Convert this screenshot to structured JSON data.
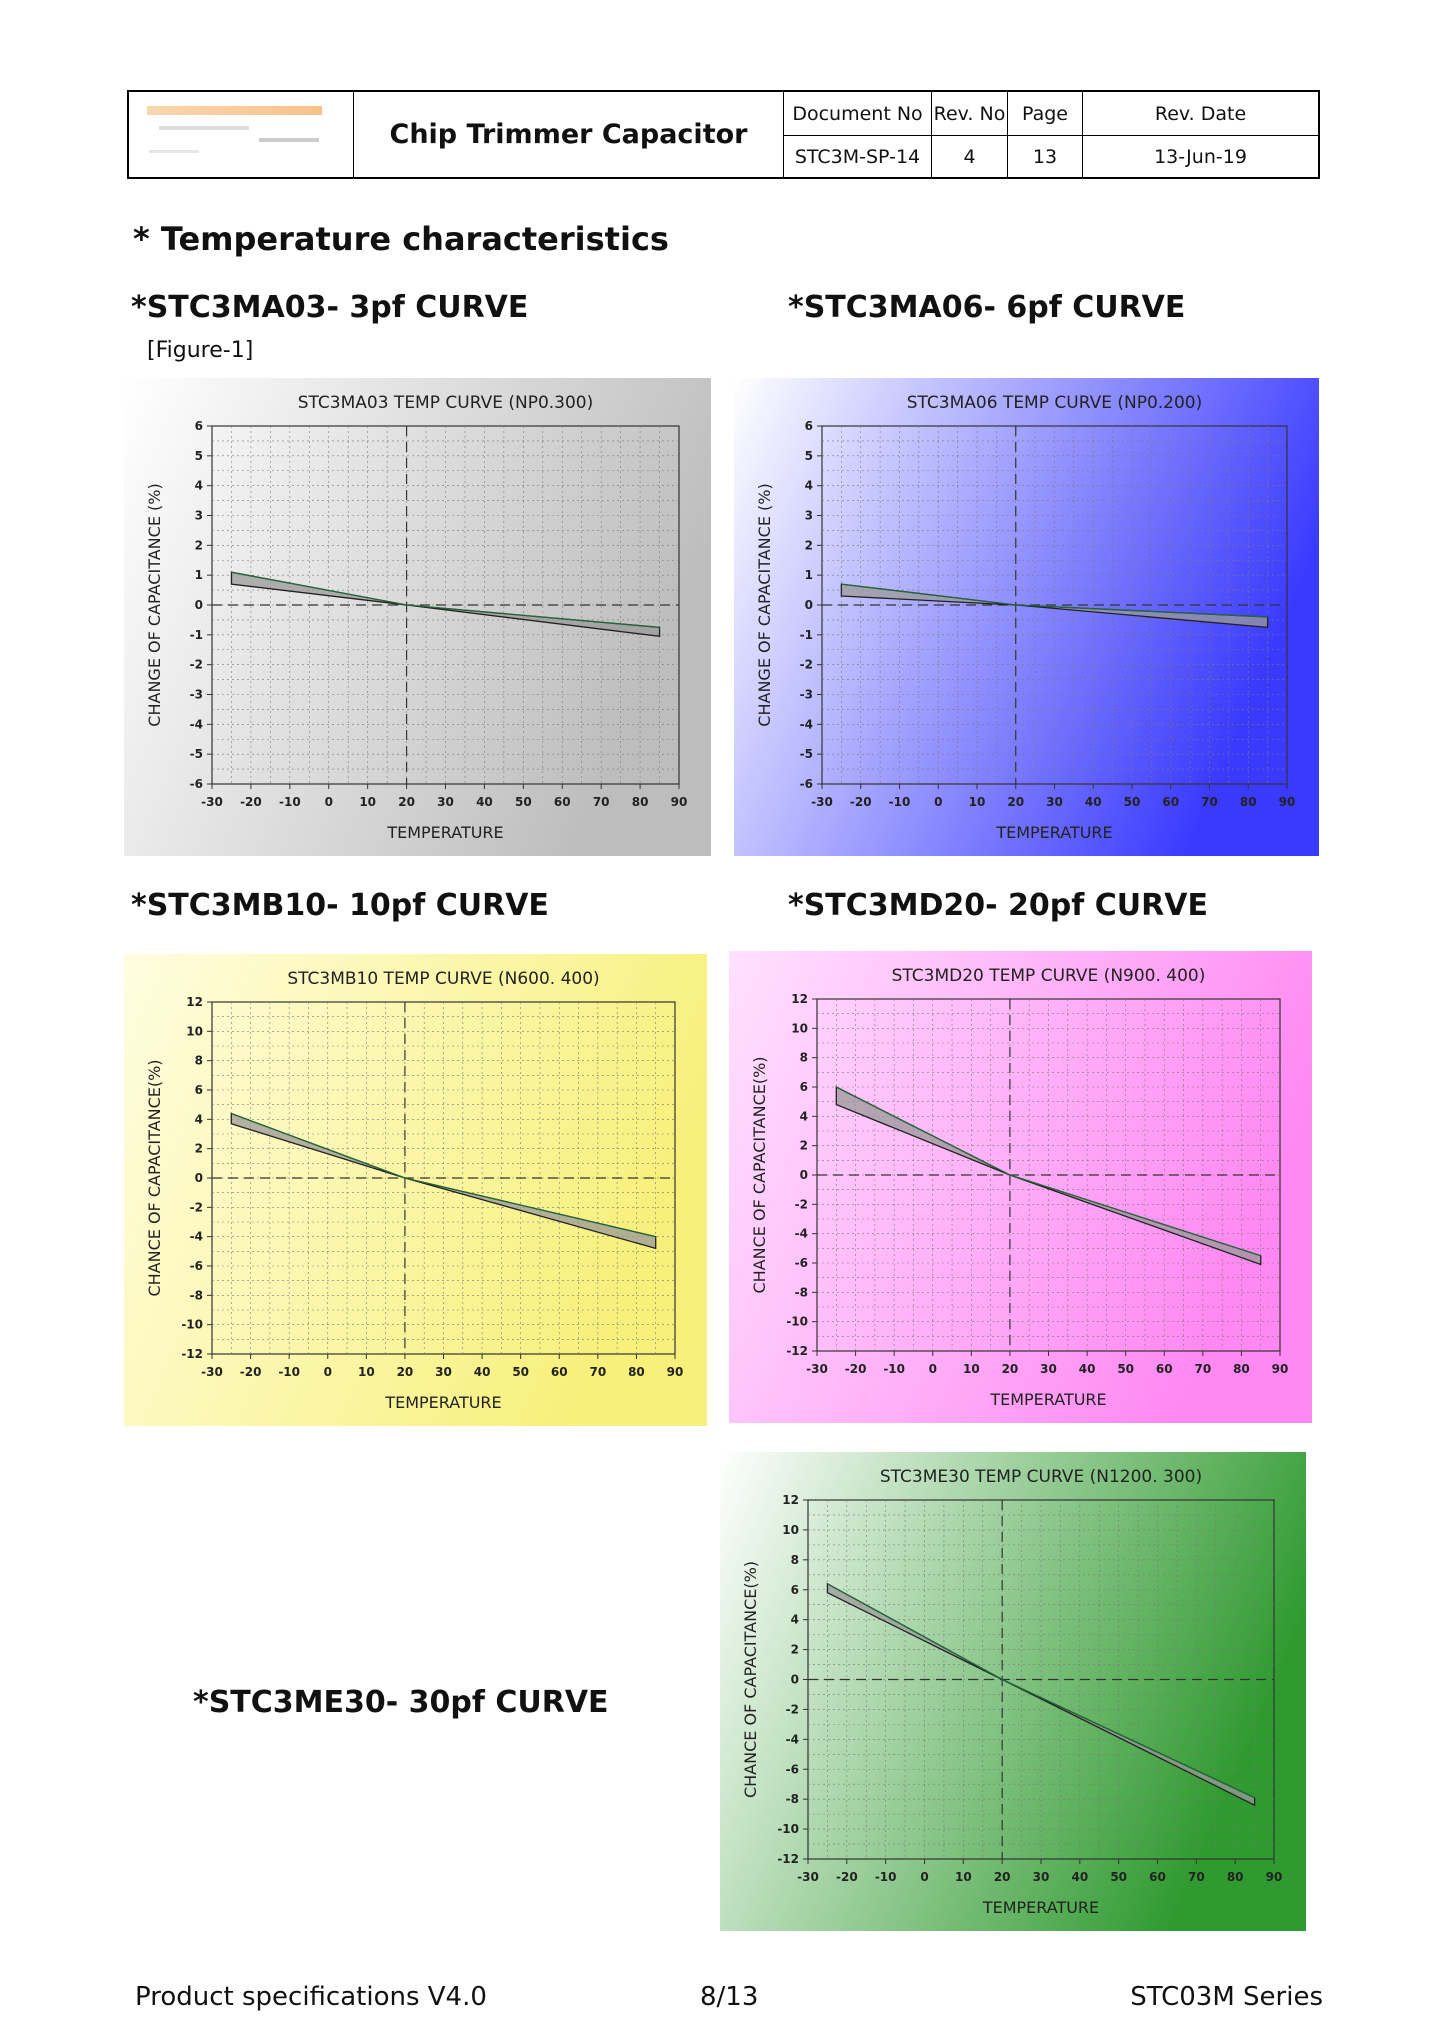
{
  "header": {
    "title": "Chip Trimmer Capacitor",
    "doc_no_label": "Document No",
    "rev_no_label": "Rev. No",
    "page_label": "Page",
    "rev_date_label": "Rev. Date",
    "doc_no": "STC3M-SP-14",
    "rev_no": "4",
    "page": "13",
    "rev_date": "13-Jun-19"
  },
  "section_title": "* Temperature characteristics",
  "figure_label": "[Figure-1]",
  "curve_titles": {
    "ma03": "*STC3MA03- 3pf  CURVE",
    "ma06": "*STC3MA06- 6pf  CURVE",
    "mb10": "*STC3MB10- 10pf  CURVE",
    "md20": "*STC3MD20- 20pf  CURVE",
    "me30": "*STC3ME30- 30pf  CURVE"
  },
  "footer": {
    "left": "Product specifications V4.0",
    "center": "8/13",
    "right": "STC03M Series"
  },
  "chart_data": [
    {
      "id": "ma03",
      "type": "area",
      "title": "STC3MA03  TEMP CURVE (NP0.300)",
      "xlabel": "TEMPERATURE",
      "ylabel": "CHANGE OF CAPACITANCE (%)",
      "xlim": [
        -30,
        90
      ],
      "ylim": [
        -6,
        6
      ],
      "xticks": [
        -30,
        -20,
        -10,
        0,
        10,
        20,
        30,
        40,
        50,
        60,
        70,
        80,
        90
      ],
      "yticks": [
        -6,
        -5,
        -4,
        -3,
        -2,
        -1,
        0,
        1,
        2,
        3,
        4,
        5,
        6
      ],
      "grid": true,
      "reference_lines": {
        "x": 20,
        "y": 0
      },
      "x": [
        -25,
        20,
        85
      ],
      "upper": [
        1.1,
        0.0,
        -0.75
      ],
      "lower": [
        0.7,
        0.0,
        -1.05
      ],
      "background": [
        "#ffffff",
        "#bdbdbd"
      ]
    },
    {
      "id": "ma06",
      "type": "area",
      "title": "STC3MA06 TEMP CURVE  (NP0.200)",
      "xlabel": "TEMPERATURE",
      "ylabel": "CHANGE OF CAPACITANCE (%)",
      "xlim": [
        -30,
        90
      ],
      "ylim": [
        -6,
        6
      ],
      "xticks": [
        -30,
        -20,
        -10,
        0,
        10,
        20,
        30,
        40,
        50,
        60,
        70,
        80,
        90
      ],
      "yticks": [
        -6,
        -5,
        -4,
        -3,
        -2,
        -1,
        0,
        1,
        2,
        3,
        4,
        5,
        6
      ],
      "grid": true,
      "reference_lines": {
        "x": 20,
        "y": 0
      },
      "x": [
        -25,
        20,
        85
      ],
      "upper": [
        0.7,
        0.0,
        -0.4
      ],
      "lower": [
        0.3,
        0.0,
        -0.75
      ],
      "background": [
        "#ffffff",
        "#3a3aff"
      ]
    },
    {
      "id": "mb10",
      "type": "area",
      "title": "STC3MB10  TEMP CURVE  (N600. 400)",
      "xlabel": "TEMPERATURE",
      "ylabel": "CHANCE OF CAPACITANCE(%)",
      "xlim": [
        -30,
        90
      ],
      "ylim": [
        -12,
        12
      ],
      "xticks": [
        -30,
        -20,
        -10,
        0,
        10,
        20,
        30,
        40,
        50,
        60,
        70,
        80,
        90
      ],
      "yticks": [
        -12,
        -10,
        -8,
        -6,
        -4,
        -2,
        0,
        2,
        4,
        6,
        8,
        10,
        12
      ],
      "grid": true,
      "reference_lines": {
        "x": 20,
        "y": 0
      },
      "x": [
        -25,
        20,
        85
      ],
      "upper": [
        4.4,
        0.0,
        -4.0
      ],
      "lower": [
        3.7,
        0.0,
        -4.8
      ],
      "background": [
        "#fffde0",
        "#f7f07a"
      ]
    },
    {
      "id": "md20",
      "type": "area",
      "title": "STC3MD20  TEMP  CURVE (N900. 400)",
      "xlabel": "TEMPERATURE",
      "ylabel": "CHANCE OF CAPACITANCE(%)",
      "xlim": [
        -30,
        90
      ],
      "ylim": [
        -12,
        12
      ],
      "xticks": [
        -30,
        -20,
        -10,
        0,
        10,
        20,
        30,
        40,
        50,
        60,
        70,
        80,
        90
      ],
      "yticks": [
        -12,
        -10,
        -8,
        -6,
        -4,
        -2,
        0,
        2,
        4,
        6,
        8,
        10,
        12
      ],
      "grid": true,
      "reference_lines": {
        "x": 20,
        "y": 0
      },
      "x": [
        -25,
        20,
        85
      ],
      "upper": [
        6.0,
        0.0,
        -5.5
      ],
      "lower": [
        4.8,
        0.0,
        -6.1
      ],
      "background": [
        "#ffe0ff",
        "#ff88f2"
      ]
    },
    {
      "id": "me30",
      "type": "area",
      "title": "STC3ME30 TEMP CURVE  (N1200. 300)",
      "xlabel": "TEMPERATURE",
      "ylabel": "CHANCE OF CAPACITANCE(%)",
      "xlim": [
        -30,
        90
      ],
      "ylim": [
        -12,
        12
      ],
      "xticks": [
        -30,
        -20,
        -10,
        0,
        10,
        20,
        30,
        40,
        50,
        60,
        70,
        80,
        90
      ],
      "yticks": [
        -12,
        -10,
        -8,
        -6,
        -4,
        -2,
        0,
        2,
        4,
        6,
        8,
        10,
        12
      ],
      "grid": true,
      "reference_lines": {
        "x": 20,
        "y": 0
      },
      "x": [
        -25,
        20,
        85
      ],
      "upper": [
        6.4,
        0.0,
        -7.9
      ],
      "lower": [
        5.8,
        0.0,
        -8.4
      ],
      "background": [
        "#ffffff",
        "#2f9a2f"
      ]
    }
  ]
}
